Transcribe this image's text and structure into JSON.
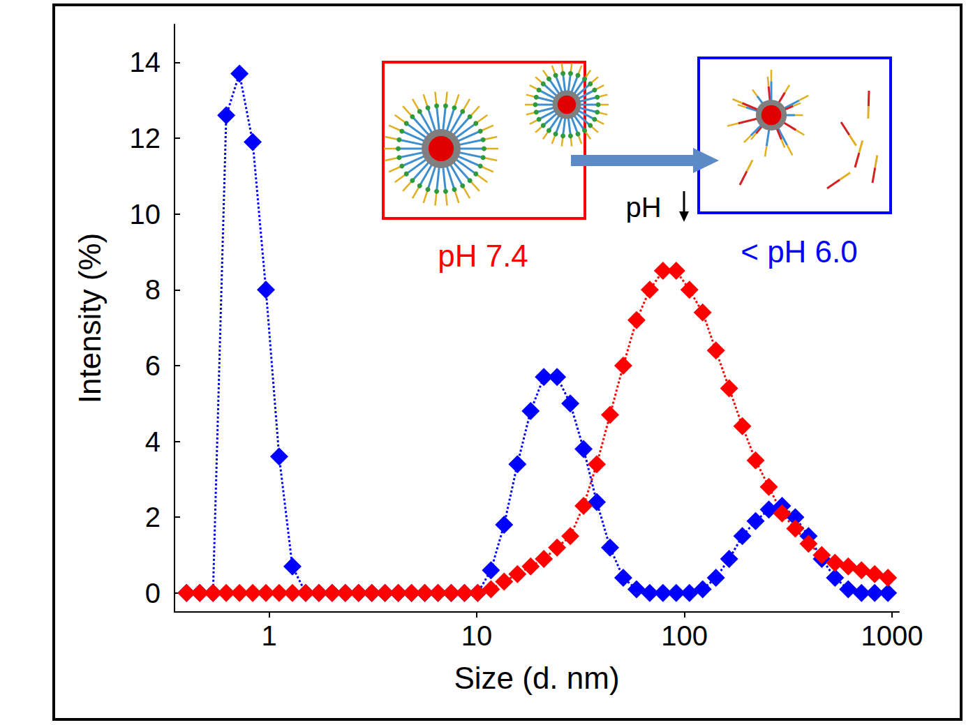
{
  "chart_data": {
    "type": "line",
    "x": [
      0.4,
      0.4632,
      0.5365,
      0.6213,
      0.7195,
      0.8332,
      0.9649,
      1.117,
      1.294,
      1.499,
      1.736,
      2.01,
      2.328,
      2.696,
      3.122,
      3.615,
      4.187,
      4.849,
      5.615,
      6.503,
      7.531,
      8.721,
      10.1,
      11.7,
      13.54,
      15.69,
      18.17,
      21.04,
      24.36,
      28.21,
      32.67,
      37.84,
      43.82,
      50.75,
      58.77,
      68.06,
      78.82,
      91.28,
      105.7,
      122.4,
      141.8,
      164.2,
      190.1,
      220.2,
      255.0,
      295.3,
      342.0,
      396.1,
      458.7,
      531.2,
      615.1,
      712.4,
      825.0,
      955.4
    ],
    "series": [
      {
        "name": "< pH 6.0",
        "color": "#0000ff",
        "values": [
          0,
          0,
          0,
          12.6,
          13.7,
          11.9,
          8.0,
          3.6,
          0.7,
          0,
          0,
          0,
          0,
          0,
          0,
          0,
          0,
          0,
          0,
          0,
          0,
          0,
          0,
          0.6,
          1.8,
          3.4,
          4.8,
          5.7,
          5.7,
          5.0,
          3.8,
          2.4,
          1.2,
          0.4,
          0.1,
          0,
          0,
          0,
          0,
          0.1,
          0.4,
          0.9,
          1.5,
          1.9,
          2.2,
          2.3,
          2.0,
          1.5,
          0.9,
          0.4,
          0.1,
          0,
          0,
          0
        ]
      },
      {
        "name": "pH 7.4",
        "color": "#ff0000",
        "values": [
          0,
          0,
          0,
          0,
          0,
          0,
          0,
          0,
          0,
          0,
          0,
          0,
          0,
          0,
          0,
          0,
          0,
          0,
          0,
          0,
          0,
          0,
          0,
          0.1,
          0.3,
          0.5,
          0.7,
          0.9,
          1.2,
          1.5,
          2.3,
          3.4,
          4.7,
          6.0,
          7.2,
          8.0,
          8.5,
          8.5,
          8.0,
          7.4,
          6.4,
          5.4,
          4.4,
          3.5,
          2.8,
          2.1,
          1.7,
          1.3,
          1.0,
          0.8,
          0.7,
          0.6,
          0.5,
          0.4
        ]
      }
    ],
    "x_label": "Size (d. nm)",
    "y_label": "Intensity (%)",
    "xlim": [
      0.35,
      1080
    ],
    "ylim": [
      -0.5,
      15
    ],
    "xticks": [
      1,
      10,
      100,
      1000
    ],
    "yticks": [
      0,
      2,
      4,
      6,
      8,
      10,
      12,
      14
    ],
    "log": "x",
    "grid": false,
    "marker": "diamond",
    "line_style": "dotted",
    "annotations": [
      "pH"
    ]
  }
}
